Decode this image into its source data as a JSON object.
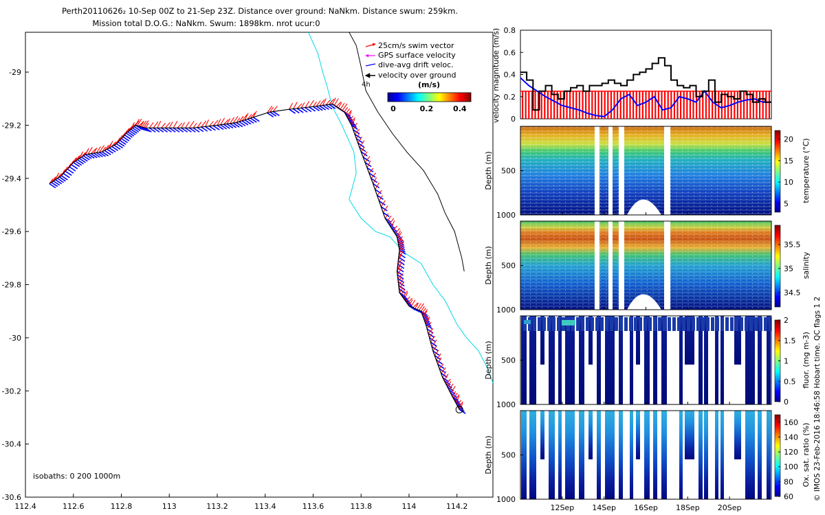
{
  "title": {
    "line1": "Perth20110626₂ 10-Sep 00Z to 21-Sep 23Z. Distance over ground: NaNkm. Distance swum: 259km.",
    "line2": "Mission total D.O.G.: NaNkm. Swum: 1898km. nrot ucur:0"
  },
  "colors": {
    "swim_vector": "#ff0000",
    "gps_surface": "#ff00ff",
    "drift_velocity": "#0000ff",
    "over_ground": "#000000",
    "isobath_200": "#00d8e8",
    "isobath_1000": "#000000",
    "bar_fill": "#ff0000"
  },
  "side_text": "© IMOS 23-Feb-2016 18:46:58 Hobart time. QC flags 1  2",
  "chart_data": [
    {
      "id": "track_map",
      "type": "scatter",
      "xlim": [
        112.4,
        114.35
      ],
      "ylim": [
        -30.6,
        -28.85
      ],
      "xticks": [
        "112.4",
        "112.6",
        "112.8",
        "113",
        "113.2",
        "113.4",
        "113.6",
        "113.8",
        "114",
        "114.2"
      ],
      "yticks": [
        "-29",
        "-29.2",
        "-29.4",
        "-29.6",
        "-29.8",
        "-30",
        "-30.2",
        "-30.4",
        "-30.6"
      ],
      "legend": [
        "25cm/s swim vector",
        "GPS surface velocity",
        "dive-avg drift veloc.",
        "velocity over ground"
      ],
      "label_4h": "4h",
      "colorbar": {
        "title": "(m/s)",
        "ticks": [
          "0",
          "0.2",
          "0.4"
        ],
        "range": [
          0,
          0.5
        ]
      },
      "isobath_label": "isobaths: 0   200  1000m",
      "track": [
        [
          112.5,
          -29.42
        ],
        [
          112.55,
          -29.39
        ],
        [
          112.6,
          -29.34
        ],
        [
          112.65,
          -29.31
        ],
        [
          112.72,
          -29.3
        ],
        [
          112.78,
          -29.27
        ],
        [
          112.82,
          -29.23
        ],
        [
          112.86,
          -29.2
        ],
        [
          112.9,
          -29.21
        ],
        [
          113.0,
          -29.21
        ],
        [
          113.1,
          -29.21
        ],
        [
          113.2,
          -29.2
        ],
        [
          113.28,
          -29.19
        ],
        [
          113.35,
          -29.17
        ],
        [
          113.42,
          -29.15
        ],
        [
          113.5,
          -29.14
        ],
        [
          113.6,
          -29.13
        ],
        [
          113.68,
          -29.12
        ],
        [
          113.73,
          -29.15
        ],
        [
          113.76,
          -29.2
        ],
        [
          113.8,
          -29.3
        ],
        [
          113.85,
          -29.42
        ],
        [
          113.9,
          -29.55
        ],
        [
          113.95,
          -29.62
        ],
        [
          113.96,
          -29.67
        ],
        [
          113.95,
          -29.75
        ],
        [
          113.96,
          -29.83
        ],
        [
          114.0,
          -29.88
        ],
        [
          114.05,
          -29.9
        ],
        [
          114.07,
          -29.95
        ],
        [
          114.1,
          -30.05
        ],
        [
          114.14,
          -30.15
        ],
        [
          114.18,
          -30.22
        ],
        [
          114.21,
          -30.27
        ]
      ],
      "isobath_200": [
        [
          113.58,
          -28.85
        ],
        [
          113.62,
          -28.93
        ],
        [
          113.64,
          -29.0
        ],
        [
          113.66,
          -29.06
        ],
        [
          113.68,
          -29.13
        ],
        [
          113.72,
          -29.2
        ],
        [
          113.77,
          -29.3
        ],
        [
          113.78,
          -29.38
        ],
        [
          113.75,
          -29.48
        ],
        [
          113.8,
          -29.55
        ],
        [
          113.86,
          -29.6
        ],
        [
          113.92,
          -29.62
        ],
        [
          113.98,
          -29.68
        ],
        [
          114.05,
          -29.72
        ],
        [
          114.1,
          -29.8
        ],
        [
          114.15,
          -29.86
        ],
        [
          114.2,
          -29.95
        ],
        [
          114.24,
          -30.0
        ],
        [
          114.29,
          -30.05
        ],
        [
          114.33,
          -30.12
        ],
        [
          114.35,
          -30.17
        ]
      ],
      "isobath_1000": [
        [
          113.75,
          -28.85
        ],
        [
          113.78,
          -28.9
        ],
        [
          113.8,
          -28.98
        ],
        [
          113.82,
          -29.07
        ],
        [
          113.87,
          -29.15
        ],
        [
          113.93,
          -29.23
        ],
        [
          113.99,
          -29.3
        ],
        [
          114.06,
          -29.37
        ],
        [
          114.12,
          -29.46
        ],
        [
          114.15,
          -29.53
        ],
        [
          114.19,
          -29.6
        ],
        [
          114.22,
          -29.7
        ],
        [
          114.23,
          -29.75
        ]
      ]
    },
    {
      "id": "velocity_magnitude",
      "type": "line",
      "ylabel": "velocity magnitude (m/s)",
      "ylim": [
        0,
        0.8
      ],
      "yticks": [
        "0",
        "0.2",
        "0.4",
        "0.6",
        "0.8"
      ],
      "xlim": [
        10,
        22
      ],
      "series": [
        {
          "name": "dive-avg drift veloc.",
          "x": [
            10.0,
            10.4,
            10.8,
            11.2,
            11.6,
            12.0,
            12.4,
            12.8,
            13.2,
            13.6,
            14.0,
            14.4,
            14.8,
            15.2,
            15.6,
            16.0,
            16.4,
            16.8,
            17.2,
            17.6,
            18.0,
            18.4,
            18.8,
            19.2,
            19.6,
            20.0,
            20.4,
            20.8,
            21.2,
            21.6,
            22.0
          ],
          "values": [
            0.37,
            0.3,
            0.25,
            0.2,
            0.16,
            0.12,
            0.1,
            0.08,
            0.05,
            0.03,
            0.02,
            0.08,
            0.18,
            0.22,
            0.12,
            0.15,
            0.2,
            0.08,
            0.1,
            0.2,
            0.18,
            0.15,
            0.25,
            0.15,
            0.1,
            0.12,
            0.15,
            0.17,
            0.18,
            0.15,
            0.15
          ]
        },
        {
          "name": "velocity over ground",
          "x": [
            10.0,
            10.3,
            10.6,
            10.9,
            11.2,
            11.5,
            11.8,
            12.1,
            12.4,
            12.7,
            13.0,
            13.3,
            13.6,
            13.9,
            14.2,
            14.5,
            14.8,
            15.1,
            15.4,
            15.7,
            16.0,
            16.3,
            16.6,
            16.9,
            17.2,
            17.5,
            17.8,
            18.1,
            18.4,
            18.7,
            19.0,
            19.3,
            19.6,
            19.9,
            20.2,
            20.5,
            20.8,
            21.1,
            21.4,
            21.7,
            22.0
          ],
          "values": [
            0.42,
            0.35,
            0.08,
            0.25,
            0.3,
            0.22,
            0.18,
            0.25,
            0.28,
            0.3,
            0.25,
            0.3,
            0.3,
            0.32,
            0.35,
            0.32,
            0.3,
            0.35,
            0.4,
            0.42,
            0.45,
            0.5,
            0.55,
            0.48,
            0.35,
            0.3,
            0.28,
            0.3,
            0.2,
            0.25,
            0.35,
            0.15,
            0.22,
            0.2,
            0.18,
            0.25,
            0.22,
            0.15,
            0.18,
            0.15,
            0.15
          ]
        }
      ],
      "bar_level": 0.25
    },
    {
      "id": "temperature",
      "type": "heatmap",
      "ylabel": "Depth (m)",
      "yticks": [
        "500",
        "1000"
      ],
      "ylim": [
        1000,
        0
      ],
      "colorbar": {
        "label": "temperature (°C)",
        "ticks": [
          "5",
          "10",
          "15",
          "20"
        ],
        "range": [
          3,
          22
        ]
      }
    },
    {
      "id": "salinity",
      "type": "heatmap",
      "ylabel": "Depth (m)",
      "yticks": [
        "500",
        "1000"
      ],
      "ylim": [
        1000,
        0
      ],
      "colorbar": {
        "label": "salinity",
        "ticks": [
          "34.5",
          "35",
          "35.5"
        ],
        "range": [
          34.2,
          35.9
        ]
      }
    },
    {
      "id": "fluorescence",
      "type": "heatmap",
      "ylabel": "Depth (m)",
      "yticks": [
        "500",
        "1000"
      ],
      "ylim": [
        1000,
        0
      ],
      "colorbar": {
        "label": "fluor. (mg m-3)",
        "ticks": [
          "0",
          "0.5",
          "1",
          "1.5",
          "2"
        ],
        "range": [
          0,
          2
        ]
      }
    },
    {
      "id": "oxygen",
      "type": "heatmap",
      "ylabel": "Depth (m)",
      "yticks": [
        "500",
        "1000"
      ],
      "ylim": [
        1000,
        0
      ],
      "xticks": [
        "12Sep",
        "14Sep",
        "16Sep",
        "18Sep",
        "20Sep"
      ],
      "colorbar": {
        "label": "Ox. sat. ratio (%)",
        "ticks": [
          "60",
          "80",
          "100",
          "120",
          "140",
          "160"
        ],
        "range": [
          60,
          170
        ]
      }
    }
  ]
}
